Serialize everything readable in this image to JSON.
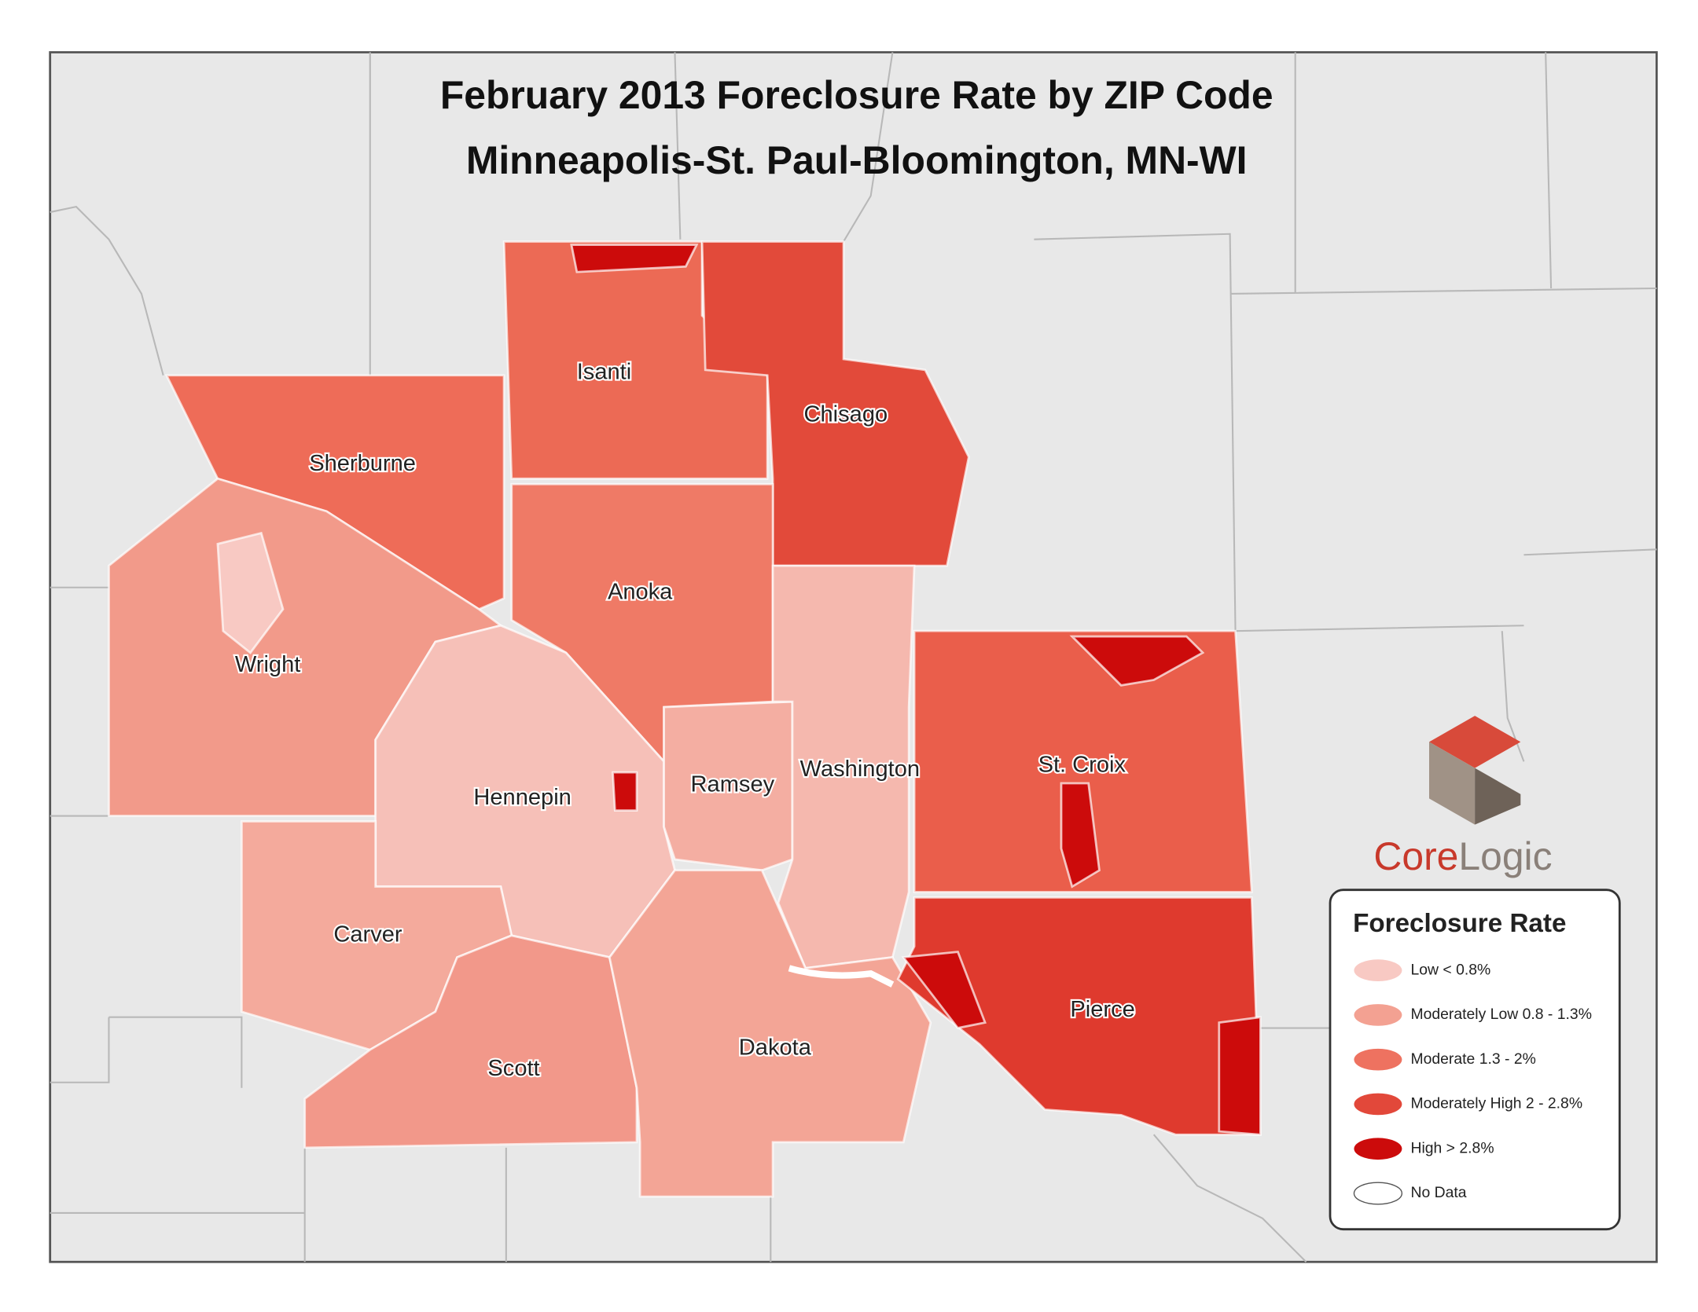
{
  "header": {
    "title": "February 2013 Foreclosure Rate by ZIP Code",
    "subtitle": "Minneapolis-St. Paul-Bloomington, MN-WI"
  },
  "counties": [
    "Isanti",
    "Chisago",
    "Sherburne",
    "Anoka",
    "Wright",
    "Hennepin",
    "Ramsey",
    "Washington",
    "St. Croix",
    "Carver",
    "Scott",
    "Dakota",
    "Pierce"
  ],
  "logo": {
    "first": "Core",
    "second": "Logic"
  },
  "legend": {
    "title": "Foreclosure Rate",
    "items": [
      {
        "label": "Low  < 0.8%",
        "color": "#f8c9c3"
      },
      {
        "label": "Moderately Low  0.8 - 1.3%",
        "color": "#f3a192"
      },
      {
        "label": "Moderate  1.3 - 2%",
        "color": "#ee7260"
      },
      {
        "label": "Moderately High  2 - 2.8%",
        "color": "#e2483a"
      },
      {
        "label": "High  > 2.8%",
        "color": "#cc0b0b"
      },
      {
        "label": "No Data",
        "color": "#ffffff"
      }
    ]
  }
}
